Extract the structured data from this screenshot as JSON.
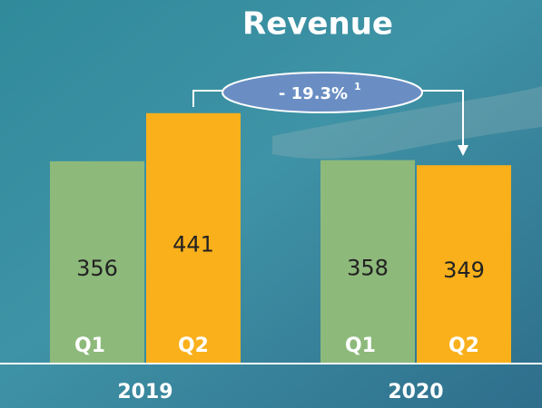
{
  "chart_data": {
    "type": "bar",
    "title": "Revenue",
    "categories": [
      "2019",
      "2020"
    ],
    "series": [
      {
        "name": "Q1",
        "color": "#8db97b",
        "values": [
          356,
          358
        ]
      },
      {
        "name": "Q2",
        "color": "#f9b01b",
        "values": [
          441,
          349
        ]
      }
    ],
    "annotation": {
      "text": "- 19.3%",
      "footnote": "1"
    }
  }
}
